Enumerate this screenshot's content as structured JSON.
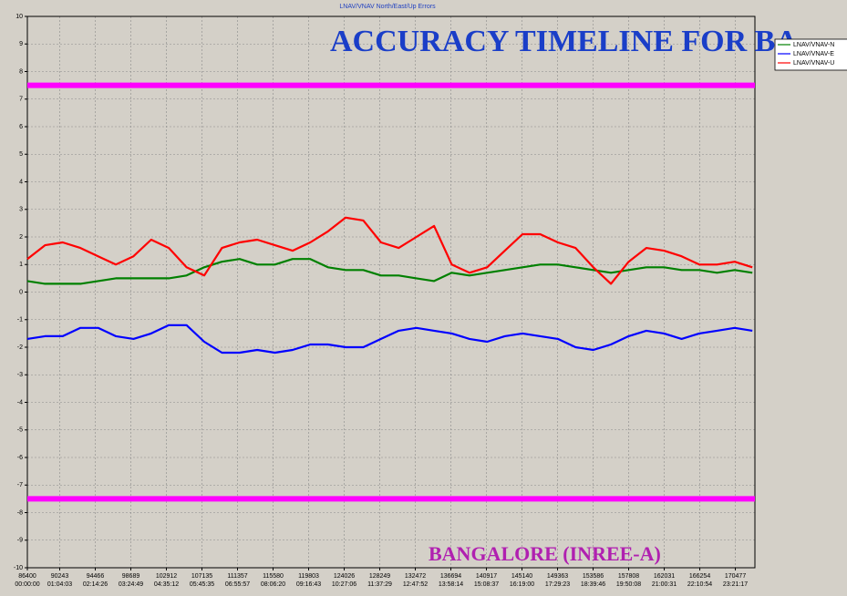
{
  "chart_data": {
    "type": "line",
    "title": "LNAV/VNAV North/East/Up Errors",
    "annotations": [
      "ACCURACY TIMELINE FOR BA",
      "BANGALORE (INREE-A)"
    ],
    "x": [
      86400,
      88500,
      90600,
      92700,
      94800,
      96900,
      99000,
      101100,
      103200,
      105300,
      107400,
      109500,
      111600,
      113700,
      115800,
      117900,
      120000,
      122100,
      124200,
      126300,
      128400,
      130500,
      132600,
      134700,
      136800,
      138900,
      141000,
      143100,
      145200,
      147300,
      149400,
      151500,
      153600,
      155700,
      157800,
      159900,
      162000,
      164100,
      166200,
      168300,
      170400,
      172500
    ],
    "series": [
      {
        "name": "LNAV/VNAV-N",
        "color": "#008000",
        "values": [
          0.4,
          0.3,
          0.3,
          0.3,
          0.4,
          0.5,
          0.5,
          0.5,
          0.5,
          0.6,
          0.9,
          1.1,
          1.2,
          1.0,
          1.0,
          1.2,
          1.2,
          0.9,
          0.8,
          0.8,
          0.6,
          0.6,
          0.5,
          0.4,
          0.7,
          0.6,
          0.7,
          0.8,
          0.9,
          1.0,
          1.0,
          0.9,
          0.8,
          0.7,
          0.8,
          0.9,
          0.9,
          0.8,
          0.8,
          0.7,
          0.8,
          0.7
        ]
      },
      {
        "name": "LNAV/VNAV-E",
        "color": "#0000ff",
        "values": [
          -1.7,
          -1.6,
          -1.6,
          -1.3,
          -1.3,
          -1.6,
          -1.7,
          -1.5,
          -1.2,
          -1.2,
          -1.8,
          -2.2,
          -2.2,
          -2.1,
          -2.2,
          -2.1,
          -1.9,
          -1.9,
          -2.0,
          -2.0,
          -1.7,
          -1.4,
          -1.3,
          -1.4,
          -1.5,
          -1.7,
          -1.8,
          -1.6,
          -1.5,
          -1.6,
          -1.7,
          -2.0,
          -2.1,
          -1.9,
          -1.6,
          -1.4,
          -1.5,
          -1.7,
          -1.5,
          -1.4,
          -1.3,
          -1.4
        ]
      },
      {
        "name": "LNAV/VNAV-U",
        "color": "#ff0000",
        "values": [
          1.2,
          1.7,
          1.8,
          1.6,
          1.3,
          1.0,
          1.3,
          1.9,
          1.6,
          0.9,
          0.6,
          1.6,
          1.8,
          1.9,
          1.7,
          1.5,
          1.8,
          2.2,
          2.7,
          2.6,
          1.8,
          1.6,
          2.0,
          2.4,
          1.0,
          0.7,
          0.9,
          1.5,
          2.1,
          2.1,
          1.8,
          1.6,
          0.9,
          0.3,
          1.1,
          1.6,
          1.5,
          1.3,
          1.0,
          1.0,
          1.1,
          0.9
        ]
      }
    ],
    "thresholds": [
      7.5,
      -7.5
    ],
    "threshold_color": "#ff00ff",
    "xlim": [
      86400,
      172800
    ],
    "xticks": [
      86400,
      90243,
      94466,
      98689,
      102912,
      107135,
      111357,
      115580,
      119803,
      124026,
      128249,
      132472,
      136694,
      140917,
      145140,
      149363,
      153586,
      157808,
      162031,
      166254,
      170477
    ],
    "xtick_times": [
      "00:00:00",
      "01:04:03",
      "02:14:26",
      "03:24:49",
      "04:35:12",
      "05:45:35",
      "06:55:57",
      "08:06:20",
      "09:16:43",
      "10:27:06",
      "11:37:29",
      "12:47:52",
      "13:58:14",
      "15:08:37",
      "16:19:00",
      "17:29:23",
      "18:39:46",
      "19:50:08",
      "21:00:31",
      "22:10:54",
      "23:21:17"
    ],
    "ylim": [
      -10,
      10
    ],
    "yticks": [
      -10,
      -9,
      -8,
      -7,
      -6,
      -5,
      -4,
      -3,
      -2,
      -1,
      0,
      1,
      2,
      3,
      4,
      5,
      6,
      7,
      8,
      9,
      10
    ],
    "grid": true,
    "legend": "top-right"
  }
}
